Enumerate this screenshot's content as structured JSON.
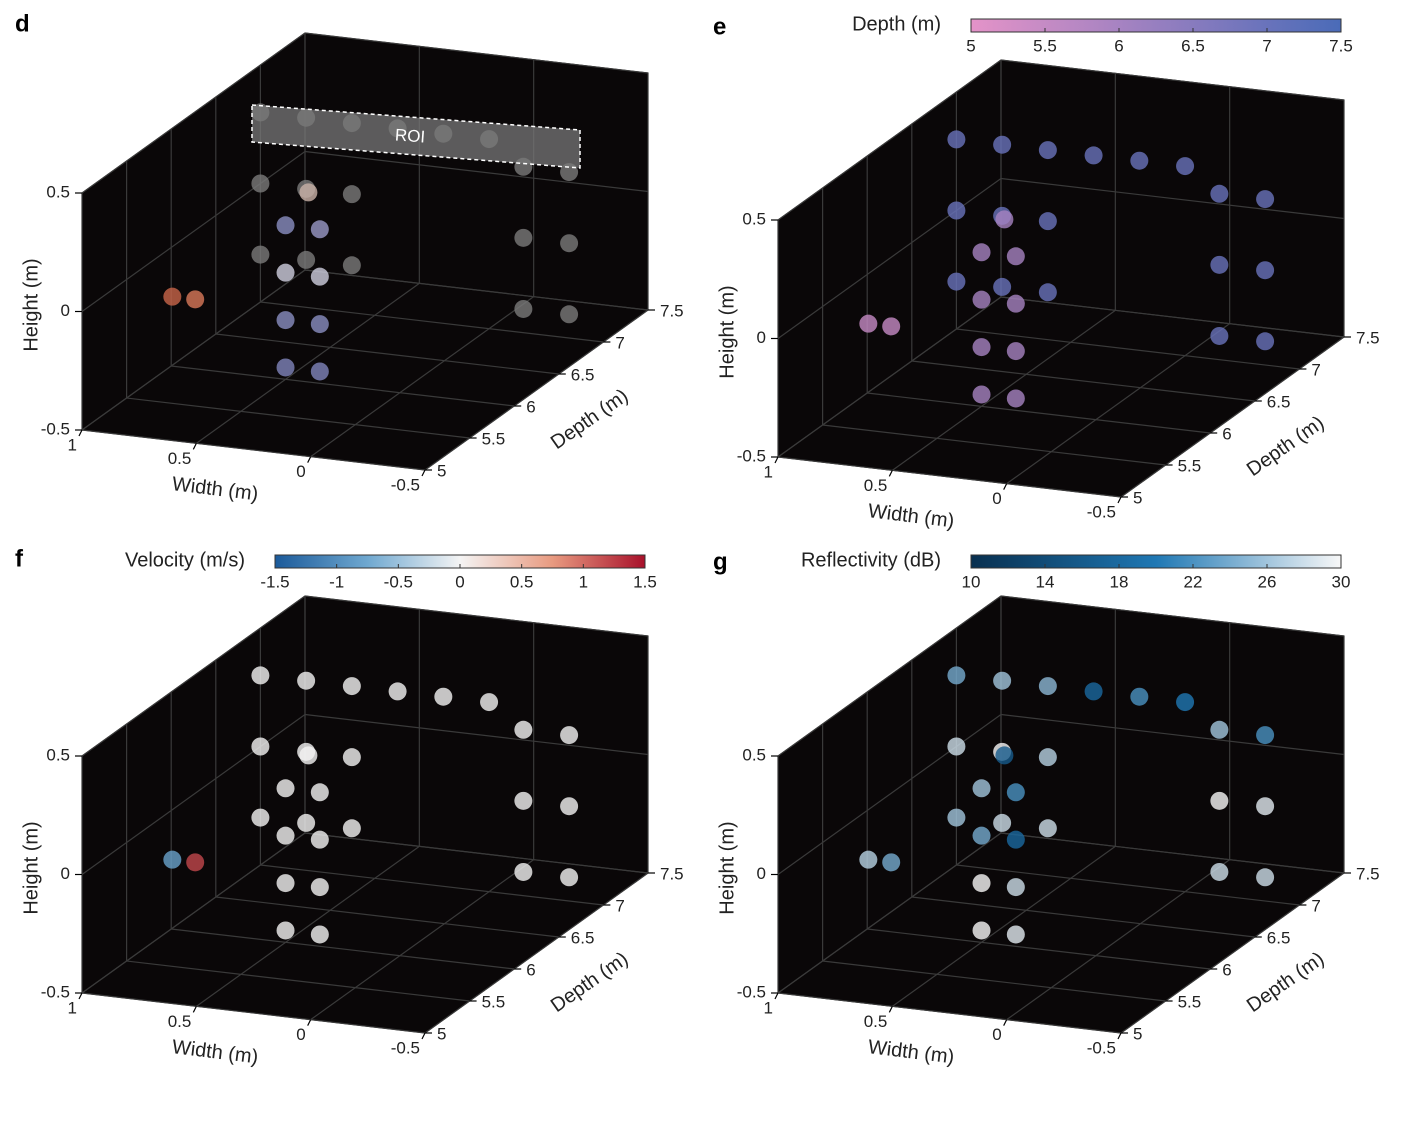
{
  "chart_data": [
    {
      "type": "scatter3d",
      "panel_label": "d",
      "annotation": "ROI",
      "xlabel": "Width (m)",
      "ylabel": "Depth (m)",
      "zlabel": "Height (m)",
      "xlim": [
        1,
        -0.5
      ],
      "xticks": [
        1,
        0.5,
        0,
        -0.5
      ],
      "ylim": [
        5,
        7.5
      ],
      "yticks": [
        5,
        5.5,
        6,
        6.5,
        7,
        7.5
      ],
      "zlim": [
        -0.5,
        0.5
      ],
      "zticks": [
        -0.5,
        0,
        0.5
      ],
      "points": {
        "x": [
          1,
          1,
          1,
          0.8,
          0.8,
          0.8,
          0.6,
          0.6,
          0.6,
          0.4,
          0.2,
          0,
          -0.15,
          -0.15,
          -0.15,
          -0.35,
          -0.35,
          -0.35,
          0.5,
          0.5,
          0.5,
          0.5,
          0.35,
          0.35,
          0.35,
          0.35,
          0.4,
          0.8,
          0.7
        ],
        "y": [
          7,
          7,
          7,
          7,
          7,
          7,
          7,
          7,
          7,
          7,
          7,
          7,
          7,
          7,
          7,
          7,
          7,
          7,
          6,
          6,
          6,
          6,
          6,
          6,
          6,
          6,
          6,
          5.5,
          5.5
        ],
        "z": [
          -0.3,
          0,
          0.3,
          -0.3,
          0,
          0.3,
          -0.3,
          0,
          0.3,
          0.3,
          0.3,
          0.3,
          -0.4,
          -0.1,
          0.2,
          -0.4,
          -0.1,
          0.2,
          -0.45,
          -0.25,
          -0.05,
          0.15,
          -0.45,
          -0.25,
          -0.05,
          0.15,
          0.3,
          -0.05,
          -0.05
        ],
        "colors": [
          "#7a7a7a",
          "#7a7a7a",
          "#7a7a7a",
          "#7a7a7a",
          "#7a7a7a",
          "#7a7a7a",
          "#7a7a7a",
          "#7a7a7a",
          "#7a7a7a",
          "#7a7a7a",
          "#7a7a7a",
          "#7a7a7a",
          "#7a7a7a",
          "#7a7a7a",
          "#7a7a7a",
          "#7a7a7a",
          "#7a7a7a",
          "#7a7a7a",
          "#7f84bb",
          "#8a8fc2",
          "#d0d0e0",
          "#8a8fc2",
          "#7f84bb",
          "#8a8fc2",
          "#d0d0e0",
          "#9a9ac8",
          "#c9b2a8",
          "#c8654a",
          "#d9795a"
        ]
      }
    },
    {
      "type": "scatter3d",
      "panel_label": "e",
      "xlabel": "Width (m)",
      "ylabel": "Depth (m)",
      "zlabel": "Height (m)",
      "xlim": [
        1,
        -0.5
      ],
      "xticks": [
        1,
        0.5,
        0,
        -0.5
      ],
      "ylim": [
        5,
        7.5
      ],
      "yticks": [
        5,
        5.5,
        6,
        6.5,
        7,
        7.5
      ],
      "zlim": [
        -0.5,
        0.5
      ],
      "zticks": [
        -0.5,
        0,
        0.5
      ],
      "color_by": "y",
      "colorbar": {
        "label": "Depth (m)",
        "lim": [
          5,
          7.5
        ],
        "ticks": [
          5,
          5.5,
          6,
          6.5,
          7,
          7.5
        ],
        "colors": [
          "#e493c8",
          "#4a6bb8"
        ]
      },
      "points": {
        "x": [
          1,
          1,
          1,
          0.8,
          0.8,
          0.8,
          0.6,
          0.6,
          0.6,
          0.4,
          0.2,
          0,
          -0.15,
          -0.15,
          -0.15,
          -0.35,
          -0.35,
          -0.35,
          0.5,
          0.5,
          0.5,
          0.5,
          0.35,
          0.35,
          0.35,
          0.35,
          0.4,
          0.8,
          0.7
        ],
        "y": [
          7,
          7,
          7,
          7,
          7,
          7,
          7,
          7,
          7,
          7,
          7,
          7,
          7,
          7,
          7,
          7,
          7,
          7,
          6,
          6,
          6,
          6,
          6,
          6,
          6,
          6,
          6,
          5.5,
          5.5
        ],
        "z": [
          -0.3,
          0,
          0.3,
          -0.3,
          0,
          0.3,
          -0.3,
          0,
          0.3,
          0.3,
          0.3,
          0.3,
          -0.4,
          -0.1,
          0.2,
          -0.4,
          -0.1,
          0.2,
          -0.45,
          -0.25,
          -0.05,
          0.15,
          -0.45,
          -0.25,
          -0.05,
          0.15,
          0.3,
          -0.05,
          -0.05
        ]
      }
    },
    {
      "type": "scatter3d",
      "panel_label": "f",
      "xlabel": "Width (m)",
      "ylabel": "Depth (m)",
      "zlabel": "Height (m)",
      "xlim": [
        1,
        -0.5
      ],
      "xticks": [
        1,
        0.5,
        0,
        -0.5
      ],
      "ylim": [
        5,
        7.5
      ],
      "yticks": [
        5,
        5.5,
        6,
        6.5,
        7,
        7.5
      ],
      "zlim": [
        -0.5,
        0.5
      ],
      "zticks": [
        -0.5,
        0,
        0.5
      ],
      "colorbar": {
        "label": "Velocity (m/s)",
        "lim": [
          -1.5,
          1.5
        ],
        "ticks": [
          -1.5,
          -1,
          -0.5,
          0,
          0.5,
          1,
          1.5
        ],
        "colors": [
          "#1b5a9a",
          "#6fa8d0",
          "#f4f4f4",
          "#e89a80",
          "#a8102a"
        ]
      },
      "points": {
        "x": [
          1,
          1,
          1,
          0.8,
          0.8,
          0.8,
          0.6,
          0.6,
          0.6,
          0.4,
          0.2,
          0,
          -0.15,
          -0.15,
          -0.15,
          -0.35,
          -0.35,
          -0.35,
          0.5,
          0.5,
          0.5,
          0.5,
          0.35,
          0.35,
          0.35,
          0.35,
          0.4,
          0.8,
          0.7
        ],
        "y": [
          7,
          7,
          7,
          7,
          7,
          7,
          7,
          7,
          7,
          7,
          7,
          7,
          7,
          7,
          7,
          7,
          7,
          7,
          6,
          6,
          6,
          6,
          6,
          6,
          6,
          6,
          6,
          5.5,
          5.5
        ],
        "z": [
          -0.3,
          0,
          0.3,
          -0.3,
          0,
          0.3,
          -0.3,
          0,
          0.3,
          0.3,
          0.3,
          0.3,
          -0.4,
          -0.1,
          0.2,
          -0.4,
          -0.1,
          0.2,
          -0.45,
          -0.25,
          -0.05,
          0.15,
          -0.45,
          -0.25,
          -0.05,
          0.15,
          0.3,
          -0.05,
          -0.05
        ],
        "c": [
          0,
          0,
          0,
          0,
          0,
          0,
          0,
          0,
          0,
          0,
          0,
          0,
          0,
          0,
          0,
          0,
          0,
          0,
          0,
          0,
          0,
          0,
          0,
          0,
          0,
          0,
          0,
          -0.8,
          1.2
        ]
      }
    },
    {
      "type": "scatter3d",
      "panel_label": "g",
      "xlabel": "Width (m)",
      "ylabel": "Depth (m)",
      "zlabel": "Height (m)",
      "xlim": [
        1,
        -0.5
      ],
      "xticks": [
        1,
        0.5,
        0,
        -0.5
      ],
      "ylim": [
        5,
        7.5
      ],
      "yticks": [
        5,
        5.5,
        6,
        6.5,
        7,
        7.5
      ],
      "zlim": [
        -0.5,
        0.5
      ],
      "zticks": [
        -0.5,
        0,
        0.5
      ],
      "colorbar": {
        "label": "Reflectivity (dB)",
        "lim": [
          10,
          30
        ],
        "ticks": [
          10,
          14,
          18,
          22,
          26,
          30
        ],
        "colors": [
          "#082f4f",
          "#1f78b4",
          "#f8f8f8"
        ]
      },
      "points": {
        "x": [
          1,
          1,
          1,
          0.8,
          0.8,
          0.8,
          0.6,
          0.6,
          0.6,
          0.4,
          0.2,
          0,
          -0.15,
          -0.15,
          -0.15,
          -0.35,
          -0.35,
          -0.35,
          0.5,
          0.5,
          0.5,
          0.5,
          0.35,
          0.35,
          0.35,
          0.35,
          0.4,
          0.8,
          0.7
        ],
        "y": [
          7,
          7,
          7,
          7,
          7,
          7,
          7,
          7,
          7,
          7,
          7,
          7,
          7,
          7,
          7,
          7,
          7,
          7,
          6,
          6,
          6,
          6,
          6,
          6,
          6,
          6,
          6,
          5.5,
          5.5
        ],
        "z": [
          -0.3,
          0,
          0.3,
          -0.3,
          0,
          0.3,
          -0.3,
          0,
          0.3,
          0.3,
          0.3,
          0.3,
          -0.4,
          -0.1,
          0.2,
          -0.4,
          -0.1,
          0.2,
          -0.45,
          -0.25,
          -0.05,
          0.15,
          -0.45,
          -0.25,
          -0.05,
          0.15,
          0.3,
          -0.05,
          -0.05
        ],
        "c": [
          26,
          28,
          24,
          28,
          30,
          26,
          28,
          27,
          25,
          18,
          22,
          20,
          28,
          30,
          26,
          28,
          29,
          22,
          30,
          30,
          24,
          26,
          29,
          28,
          18,
          22,
          16,
          27,
          24
        ]
      }
    }
  ]
}
